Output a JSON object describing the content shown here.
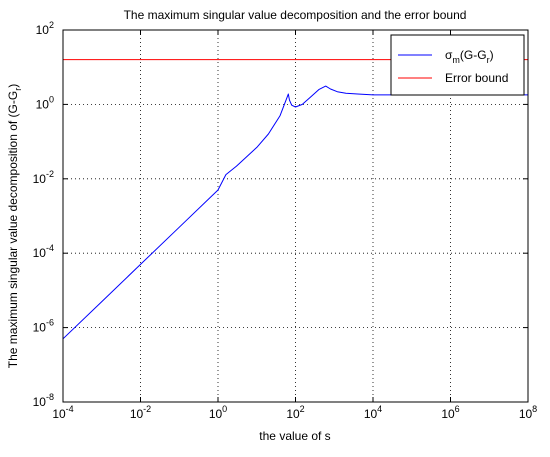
{
  "chart_data": {
    "type": "line",
    "title": "The maximum singular value decomposition and the error bound",
    "xlabel": "the value of s",
    "ylabel": "The maximum singular value decomposition of (G-G",
    "ylabel_sub": "r",
    "ylabel_close": ")",
    "xscale": "log",
    "yscale": "log",
    "xlim": [
      0.0001,
      100000000
    ],
    "ylim": [
      1e-08,
      100
    ],
    "grid": true,
    "legend_position": "top-right",
    "x_ticks": [
      {
        "value": 0.0001,
        "base": "10",
        "exp": "-4"
      },
      {
        "value": 0.01,
        "base": "10",
        "exp": "-2"
      },
      {
        "value": 1,
        "base": "10",
        "exp": "0"
      },
      {
        "value": 100,
        "base": "10",
        "exp": "2"
      },
      {
        "value": 10000,
        "base": "10",
        "exp": "4"
      },
      {
        "value": 1000000,
        "base": "10",
        "exp": "6"
      },
      {
        "value": 100000000,
        "base": "10",
        "exp": "8"
      }
    ],
    "y_ticks": [
      {
        "value": 1e-08,
        "base": "10",
        "exp": "-8"
      },
      {
        "value": 1e-06,
        "base": "10",
        "exp": "-6"
      },
      {
        "value": 0.0001,
        "base": "10",
        "exp": "-4"
      },
      {
        "value": 0.01,
        "base": "10",
        "exp": "-2"
      },
      {
        "value": 1,
        "base": "10",
        "exp": "0"
      },
      {
        "value": 100,
        "base": "10",
        "exp": "2"
      }
    ],
    "series": [
      {
        "name": "σm(G-Gr)",
        "legend_sym": "σ",
        "legend_sub1": "m",
        "legend_mid": "(G-G",
        "legend_sub2": "r",
        "legend_end": ")",
        "color": "#0000ff",
        "x": [
          0.0001,
          0.001,
          0.01,
          0.1,
          1,
          1.6,
          3,
          10,
          20,
          40,
          60,
          65,
          70,
          80,
          100,
          150,
          250,
          400,
          600,
          800,
          1200,
          2000,
          4000,
          10000,
          100000,
          1000000,
          100000000
        ],
        "y": [
          5e-07,
          5e-06,
          5e-05,
          0.0005,
          0.005,
          0.013,
          0.022,
          0.07,
          0.16,
          0.5,
          1.5,
          1.9,
          1.3,
          0.95,
          0.85,
          1.0,
          1.6,
          2.5,
          3.1,
          2.6,
          2.2,
          2.0,
          1.9,
          1.8,
          1.8,
          1.8,
          1.8
        ]
      },
      {
        "name": "Error bound",
        "color": "#ff0000",
        "x": [
          0.0001,
          100000000
        ],
        "y": [
          16,
          16
        ]
      }
    ]
  }
}
